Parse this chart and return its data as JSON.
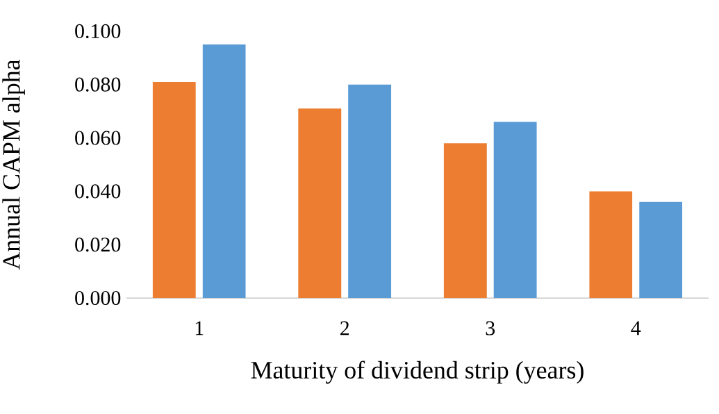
{
  "chart_data": {
    "type": "bar",
    "xlabel": "Maturity of dividend strip (years)",
    "ylabel": "Annual  CAPM alpha",
    "categories": [
      "1",
      "2",
      "3",
      "4"
    ],
    "series": [
      {
        "color": "#ed7d31",
        "values": [
          0.081,
          0.071,
          0.058,
          0.04
        ]
      },
      {
        "color": "#5b9bd5",
        "values": [
          0.095,
          0.08,
          0.066,
          0.036
        ]
      }
    ],
    "ylim": [
      0,
      0.1
    ],
    "yticks": [
      {
        "value": 0,
        "label": "0.000"
      },
      {
        "value": 0.02,
        "label": "0.020"
      },
      {
        "value": 0.04,
        "label": "0.040"
      },
      {
        "value": 0.06,
        "label": "0.060"
      },
      {
        "value": 0.08,
        "label": "0.080"
      },
      {
        "value": 0.1,
        "label": "0.100"
      }
    ]
  }
}
